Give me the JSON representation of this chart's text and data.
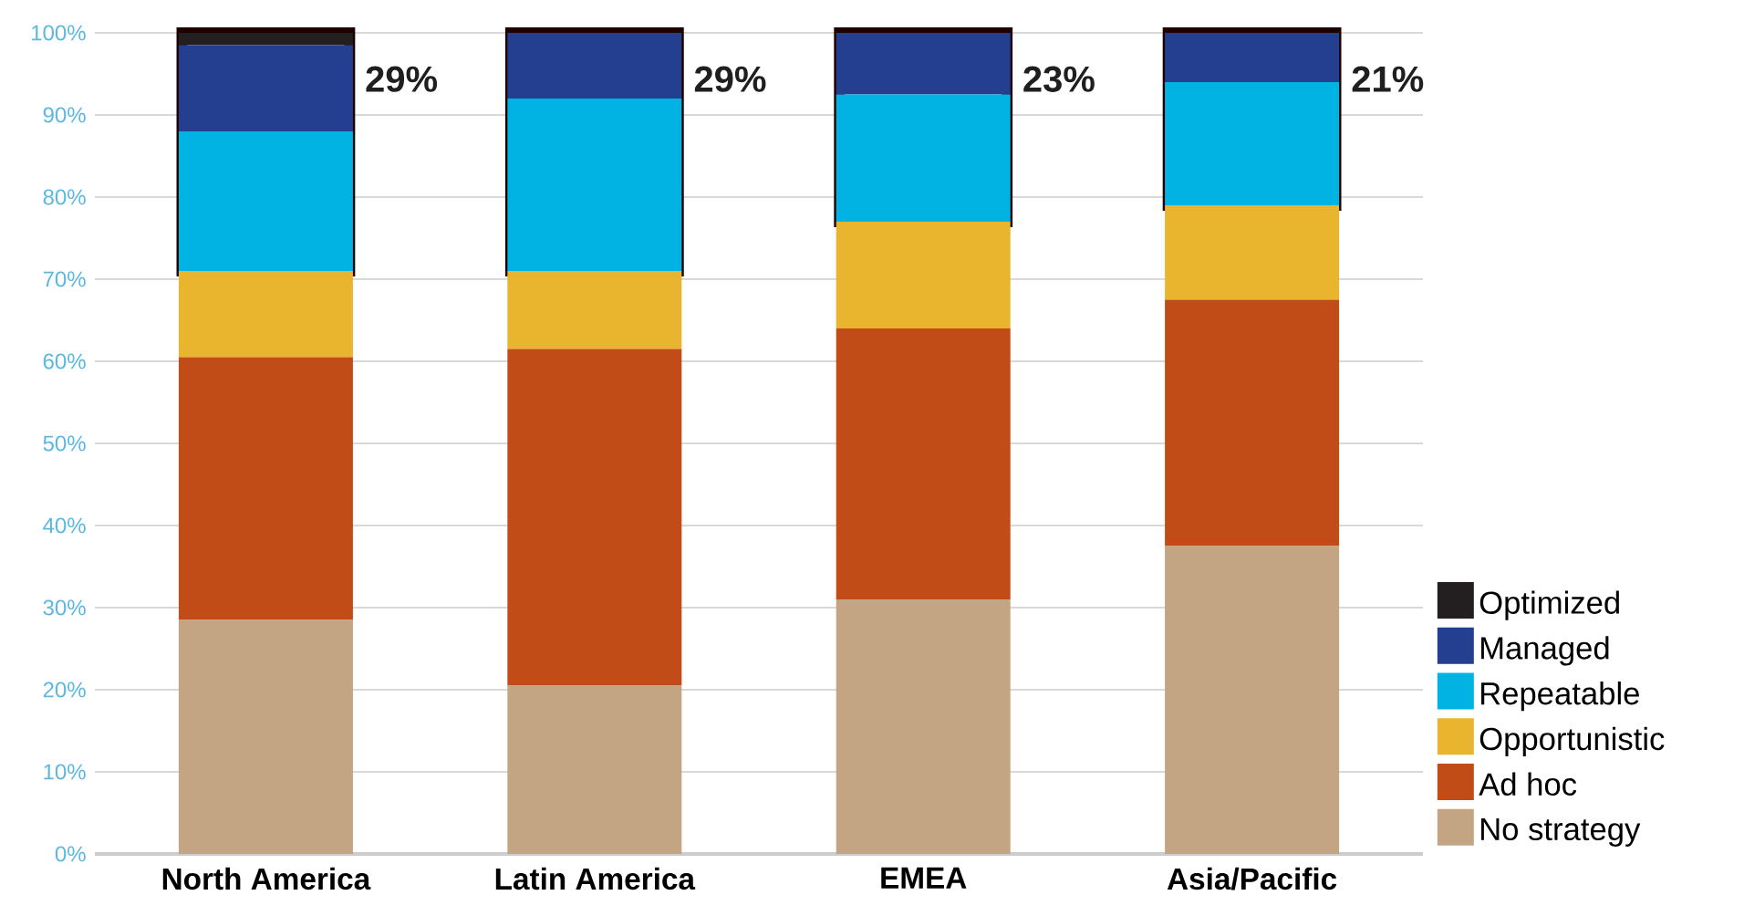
{
  "chart_data": {
    "type": "bar",
    "stacked": true,
    "categories": [
      "North America",
      "Latin America",
      "EMEA",
      "Asia/Pacific"
    ],
    "series": [
      {
        "name": "No strategy",
        "color": "#c4a583",
        "values": [
          28.5,
          20.5,
          31,
          37.5
        ]
      },
      {
        "name": "Ad hoc",
        "color": "#c24c17",
        "values": [
          32,
          41,
          33,
          30
        ]
      },
      {
        "name": "Opportunistic",
        "color": "#e9b52f",
        "values": [
          10.5,
          9.5,
          13,
          11.5
        ]
      },
      {
        "name": "Repeatable",
        "color": "#00b3e3",
        "values": [
          17,
          21,
          15.5,
          15
        ]
      },
      {
        "name": "Managed",
        "color": "#243f8f",
        "values": [
          10.5,
          8,
          7.5,
          6
        ]
      },
      {
        "name": "Optimized",
        "color": "#231f20",
        "values": [
          1.5,
          0,
          0,
          0
        ]
      }
    ],
    "ylim": [
      0,
      100
    ],
    "yticks": [
      {
        "value": 0,
        "label": "0%"
      },
      {
        "value": 10,
        "label": "10%"
      },
      {
        "value": 20,
        "label": "20%"
      },
      {
        "value": 30,
        "label": "30%"
      },
      {
        "value": 40,
        "label": "40%"
      },
      {
        "value": 50,
        "label": "50%"
      },
      {
        "value": 60,
        "label": "60%"
      },
      {
        "value": 70,
        "label": "70%"
      },
      {
        "value": 80,
        "label": "80%"
      },
      {
        "value": 90,
        "label": "90%"
      },
      {
        "value": 100,
        "label": "100%"
      }
    ],
    "grid": "y",
    "legend": "bottom right",
    "annotations": [
      {
        "text": "29%",
        "x": "North America",
        "y": 100
      },
      {
        "text": "29%",
        "x": "Latin America",
        "y": 100
      },
      {
        "text": "23%",
        "x": "EMEA",
        "y": 100
      },
      {
        "text": "21%",
        "x": "Asia/Pacific",
        "y": 100
      }
    ]
  }
}
